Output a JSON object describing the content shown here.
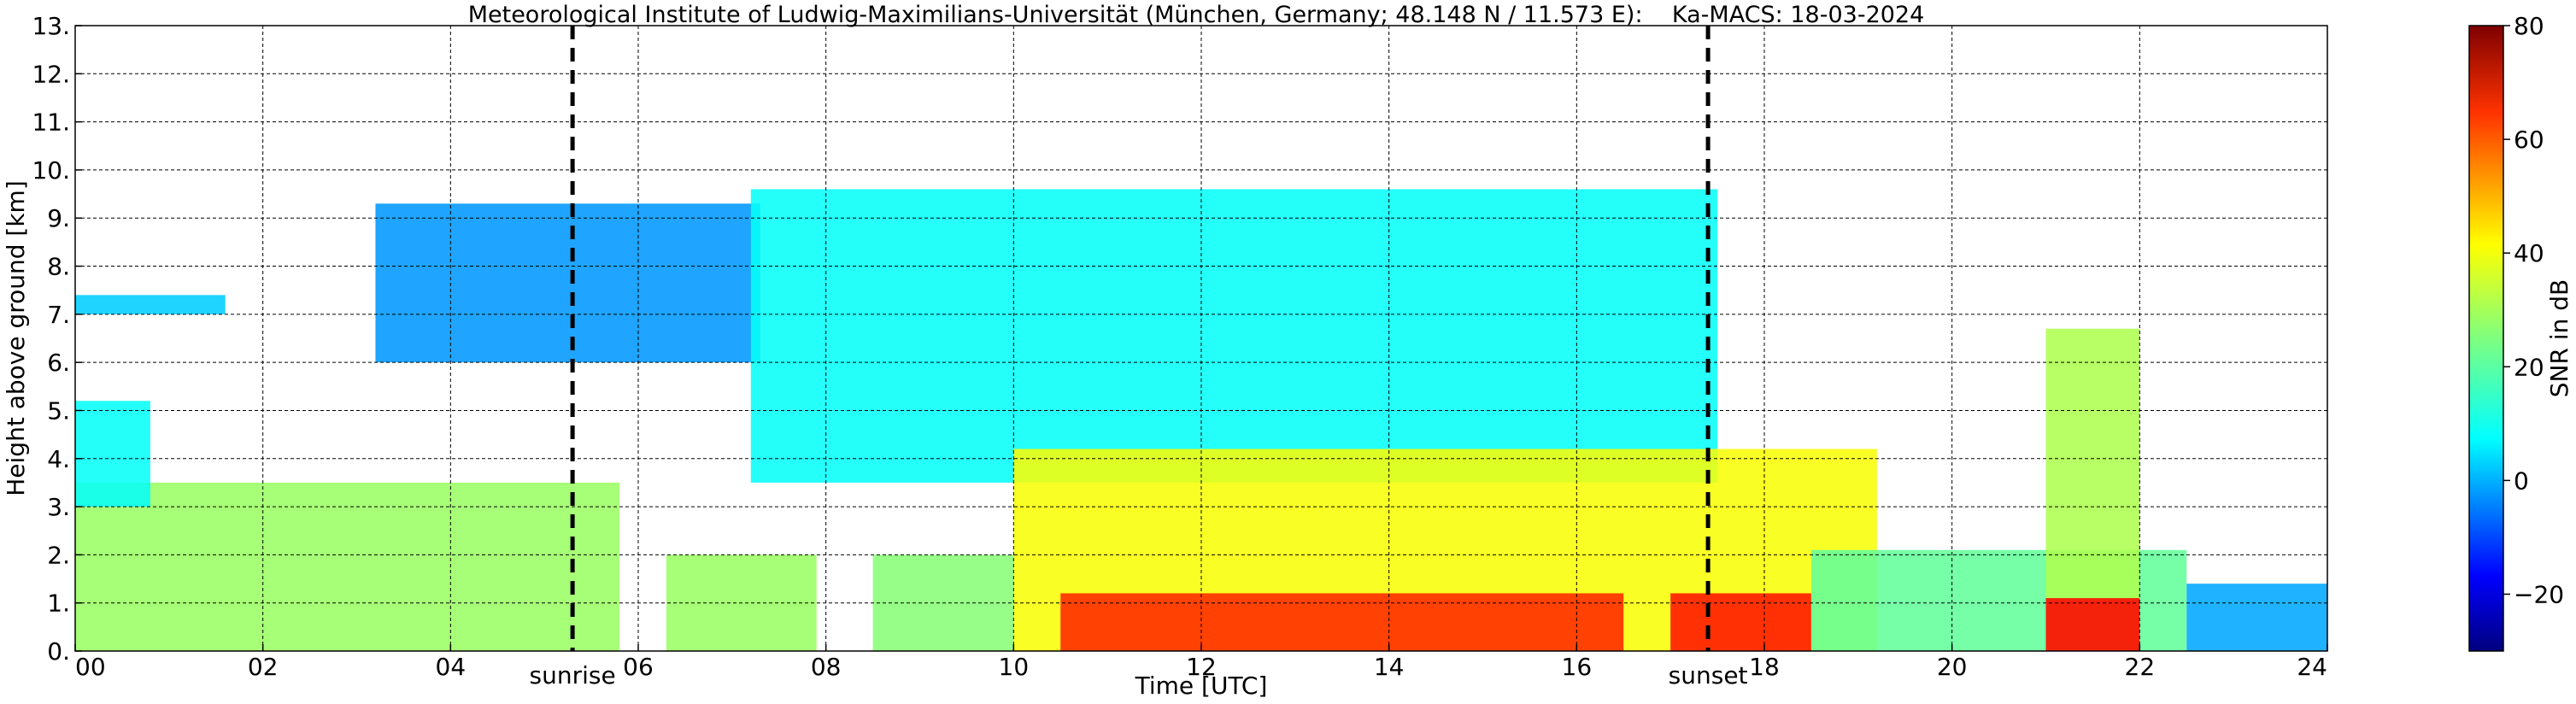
{
  "chart_data": {
    "type": "heatmap",
    "title": "Meteorological Institute of Ludwig-Maximilians-Universität (München, Germany; 48.148 N / 11.573 E):    Ka-MACS: 18-03-2024",
    "xlabel": "Time [UTC]",
    "ylabel": "Height above ground [km]",
    "xlim": [
      0,
      24
    ],
    "ylim": [
      0,
      13
    ],
    "x_ticks": [
      0,
      2,
      4,
      6,
      8,
      10,
      12,
      14,
      16,
      18,
      20,
      22,
      24
    ],
    "x_tick_labels": [
      "00",
      "02",
      "04",
      "06",
      "08",
      "10",
      "12",
      "14",
      "16",
      "18",
      "20",
      "22",
      "24"
    ],
    "y_ticks": [
      0,
      1,
      2,
      3,
      4,
      5,
      6,
      7,
      8,
      9,
      10,
      11,
      12,
      13
    ],
    "y_tick_labels": [
      "0.",
      "1.",
      "2.",
      "3.",
      "4.",
      "5.",
      "6.",
      "7.",
      "8.",
      "9.",
      "10.",
      "11.",
      "12.",
      "13."
    ],
    "grid": true,
    "colorbar": {
      "label": "SNR in dB",
      "range": [
        -30,
        80
      ],
      "ticks": [
        -20,
        0,
        20,
        40,
        60,
        80
      ],
      "tick_labels": [
        "−20",
        "0",
        "20",
        "40",
        "60",
        "80"
      ],
      "colormap": "jet"
    },
    "annotations": [
      {
        "label": "sunrise",
        "x": 5.3,
        "style": "dashed"
      },
      {
        "label": "sunset",
        "x": 17.4,
        "style": "dashed"
      }
    ],
    "echo_regions": [
      {
        "t_start": 0.0,
        "t_end": 5.8,
        "bottom_km": 0.0,
        "top_km": 3.5,
        "snr_db": 28
      },
      {
        "t_start": 0.0,
        "t_end": 0.8,
        "bottom_km": 3.0,
        "top_km": 5.2,
        "snr_db": 12
      },
      {
        "t_start": 0.0,
        "t_end": 1.6,
        "bottom_km": 7.0,
        "top_km": 7.4,
        "snr_db": 6
      },
      {
        "t_start": 3.2,
        "t_end": 7.3,
        "bottom_km": 6.0,
        "top_km": 9.3,
        "snr_db": 0
      },
      {
        "t_start": 6.3,
        "t_end": 7.9,
        "bottom_km": 0.0,
        "top_km": 2.0,
        "snr_db": 28
      },
      {
        "t_start": 8.5,
        "t_end": 10.0,
        "bottom_km": 0.0,
        "top_km": 2.0,
        "snr_db": 26
      },
      {
        "t_start": 7.2,
        "t_end": 17.5,
        "bottom_km": 3.5,
        "top_km": 9.6,
        "snr_db": 12
      },
      {
        "t_start": 10.0,
        "t_end": 19.2,
        "bottom_km": 0.0,
        "top_km": 4.2,
        "snr_db": 38
      },
      {
        "t_start": 10.5,
        "t_end": 16.5,
        "bottom_km": 0.0,
        "top_km": 1.2,
        "snr_db": 62
      },
      {
        "t_start": 17.0,
        "t_end": 18.5,
        "bottom_km": 0.0,
        "top_km": 1.2,
        "snr_db": 64
      },
      {
        "t_start": 18.5,
        "t_end": 22.5,
        "bottom_km": 0.0,
        "top_km": 2.1,
        "snr_db": 22
      },
      {
        "t_start": 21.0,
        "t_end": 22.0,
        "bottom_km": 0.0,
        "top_km": 6.7,
        "snr_db": 30
      },
      {
        "t_start": 21.0,
        "t_end": 22.0,
        "bottom_km": 0.0,
        "top_km": 1.1,
        "snr_db": 66
      },
      {
        "t_start": 22.5,
        "t_end": 24.0,
        "bottom_km": 0.0,
        "top_km": 1.4,
        "snr_db": 2
      }
    ]
  }
}
